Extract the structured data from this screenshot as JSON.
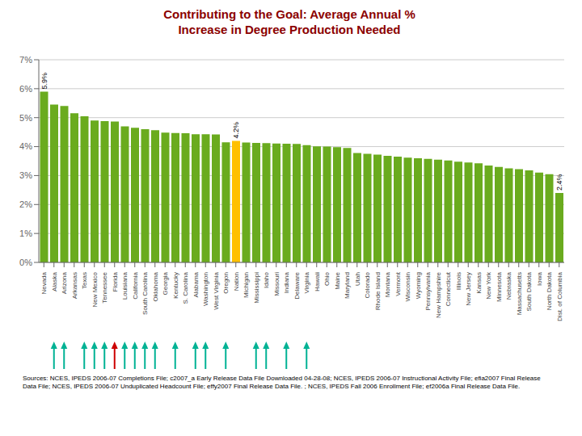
{
  "chart_data": {
    "type": "bar",
    "title": "Contributing to the Goal: Average Annual %\nIncrease in Degree Production Needed",
    "title_color": "#8B0000",
    "categories": [
      "Nevada",
      "Alaska",
      "Arizona",
      "Arkansas",
      "Texas",
      "New Mexico",
      "Tennessee",
      "Florida",
      "Louisiana",
      "California",
      "South Carolina",
      "Oklahoma",
      "Georgia",
      "Kentucky",
      "S. Carolina",
      "Alabama",
      "Washington",
      "West Virginia",
      "Oregon",
      "Nation",
      "Michigan",
      "Mississippi",
      "Idaho",
      "Missouri",
      "Indiana",
      "Delaware",
      "Virginia",
      "Hawaii",
      "Ohio",
      "Maine",
      "Maryland",
      "Utah",
      "Colorado",
      "Rhode Island",
      "Montana",
      "Vermont",
      "Wisconsin",
      "Wyoming",
      "Pennsylvania",
      "New Hampshire",
      "Connecticut",
      "Illinois",
      "New Jersey",
      "Kansas",
      "New York",
      "Minnesota",
      "Nebraska",
      "Massachusetts",
      "South Dakota",
      "Iowa",
      "North Dakota",
      "Dist. of Columbia"
    ],
    "values": [
      5.9,
      5.45,
      5.4,
      5.15,
      5.05,
      4.9,
      4.88,
      4.87,
      4.7,
      4.65,
      4.6,
      4.57,
      4.48,
      4.47,
      4.46,
      4.43,
      4.43,
      4.42,
      4.15,
      4.2,
      4.14,
      4.13,
      4.12,
      4.11,
      4.1,
      4.09,
      4.05,
      4.01,
      4.0,
      3.98,
      3.95,
      3.78,
      3.75,
      3.72,
      3.68,
      3.65,
      3.62,
      3.6,
      3.58,
      3.55,
      3.52,
      3.48,
      3.45,
      3.42,
      3.35,
      3.3,
      3.25,
      3.22,
      3.18,
      3.1,
      3.05,
      2.4
    ],
    "colors": [
      "#6AAB1E",
      "#6AAB1E",
      "#6AAB1E",
      "#6AAB1E",
      "#6AAB1E",
      "#6AAB1E",
      "#6AAB1E",
      "#6AAB1E",
      "#6AAB1E",
      "#6AAB1E",
      "#6AAB1E",
      "#6AAB1E",
      "#6AAB1E",
      "#6AAB1E",
      "#6AAB1E",
      "#6AAB1E",
      "#6AAB1E",
      "#6AAB1E",
      "#6AAB1E",
      "#FFC000",
      "#6AAB1E",
      "#6AAB1E",
      "#6AAB1E",
      "#6AAB1E",
      "#6AAB1E",
      "#6AAB1E",
      "#6AAB1E",
      "#6AAB1E",
      "#6AAB1E",
      "#6AAB1E",
      "#6AAB1E",
      "#6AAB1E",
      "#6AAB1E",
      "#6AAB1E",
      "#6AAB1E",
      "#6AAB1E",
      "#6AAB1E",
      "#6AAB1E",
      "#6AAB1E",
      "#6AAB1E",
      "#6AAB1E",
      "#6AAB1E",
      "#6AAB1E",
      "#6AAB1E",
      "#6AAB1E",
      "#6AAB1E",
      "#6AAB1E",
      "#6AAB1E",
      "#6AAB1E",
      "#6AAB1E",
      "#6AAB1E",
      "#6AAB1E"
    ],
    "ylim": [
      0,
      7
    ],
    "yticks": [
      {
        "value": 0,
        "label": "0%"
      },
      {
        "value": 1,
        "label": "1%"
      },
      {
        "value": 2,
        "label": "2%"
      },
      {
        "value": 3,
        "label": "3%"
      },
      {
        "value": 4,
        "label": "4%"
      },
      {
        "value": 5,
        "label": "5%"
      },
      {
        "value": 6,
        "label": "6%"
      },
      {
        "value": 7,
        "label": "7%"
      }
    ],
    "grid": true,
    "annotations": [
      {
        "category": "Nevada",
        "text": "5.9%"
      },
      {
        "category": "Nation",
        "text": "4.2%"
      },
      {
        "category": "Dist. of Columbia",
        "text": "2.4%"
      }
    ],
    "arrows": [
      {
        "category": "Alaska",
        "color": "#00B294"
      },
      {
        "category": "Arizona",
        "color": "#00B294"
      },
      {
        "category": "Texas",
        "color": "#00B294"
      },
      {
        "category": "New Mexico",
        "color": "#00B294"
      },
      {
        "category": "Tennessee",
        "color": "#00B294"
      },
      {
        "category": "Louisiana",
        "color": "#00B294"
      },
      {
        "category": "California",
        "color": "#00B294"
      },
      {
        "category": "South Carolina",
        "color": "#00B294"
      },
      {
        "category": "Oklahoma",
        "color": "#00B294"
      },
      {
        "category": "Kentucky",
        "color": "#00B294"
      },
      {
        "category": "Alabama",
        "color": "#00B294"
      },
      {
        "category": "Washington",
        "color": "#00B294"
      },
      {
        "category": "Oregon",
        "color": "#00B294"
      },
      {
        "category": "Mississippi",
        "color": "#00B294"
      },
      {
        "category": "Idaho",
        "color": "#00B294"
      },
      {
        "category": "Indiana",
        "color": "#00B294"
      },
      {
        "category": "Virginia",
        "color": "#00B294"
      },
      {
        "category": "Florida",
        "color": "#CC0000"
      }
    ],
    "source": "Sources:  NCES,  IPEDS 2006-07 Completions File; c2007_a Early Release Data File Downloaded 04-28-08;  NCES,  IPEDS 2006-07 Instructional Activity File; efia2007 Final  Release\nData File; NCES, IPEDS 2006-07 Unduplicated Headcount File; effy2007 Final Release Data File. ; NCES,  IPEDS Fall 2006 Enrollment File; ef2006a Final  Release Data File."
  }
}
